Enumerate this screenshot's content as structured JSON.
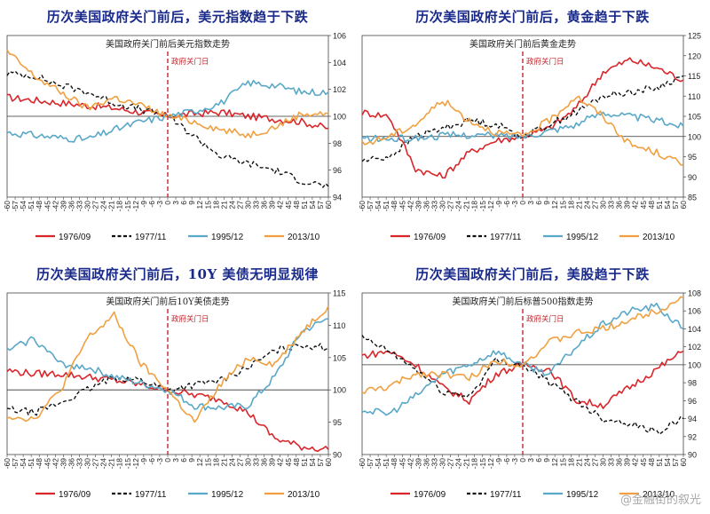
{
  "legend_labels": [
    "1976/09",
    "1977/11",
    "1995/12",
    "2013/10"
  ],
  "colors": {
    "1976/09": "#d9262b",
    "1977/11": "#111111",
    "1995/12": "#59a8c8",
    "2013/10": "#f0a040",
    "marker": "#c0272d",
    "title": "#1a2a8a"
  },
  "marker_label": "政府关门日",
  "watermark": "@金融街的叙光",
  "x_ticks": [
    "-60",
    "-57",
    "-54",
    "-51",
    "-48",
    "-45",
    "-42",
    "-39",
    "-36",
    "-33",
    "-30",
    "-27",
    "-24",
    "-21",
    "-18",
    "-15",
    "-12",
    "-9",
    "-6",
    "-3",
    "0",
    "3",
    "6",
    "9",
    "12",
    "15",
    "18",
    "21",
    "24",
    "27",
    "30",
    "33",
    "36",
    "39",
    "42",
    "45",
    "48",
    "51",
    "54",
    "57",
    "60"
  ],
  "panels": [
    {
      "title": "历次美国政府关门前后，美元指数趋于下跌",
      "subtitle": "美国政府关门前后美元指数走势"
    },
    {
      "title": "历次美国政府关门前后，黄金趋于下跌",
      "subtitle": "美国政府关门前后黄金走势"
    },
    {
      "title": "历次美国政府关门前后，10Y 美债无明显规律",
      "subtitle": "美国政府关门前后10Y美债走势"
    },
    {
      "title": "历次美国政府关门前后，美股趋于下跌",
      "subtitle": "美国政府关门前后标普500指数走势"
    }
  ],
  "chart_data": [
    {
      "type": "line",
      "title": "美国政府关门前后美元指数走势",
      "x": [
        -60,
        -50,
        -40,
        -30,
        -20,
        -10,
        0,
        10,
        20,
        30,
        40,
        50,
        60
      ],
      "ylim": [
        94,
        106
      ],
      "yticks": [
        94,
        96,
        98,
        100,
        102,
        104,
        106
      ],
      "baseline": 100,
      "series": [
        {
          "name": "1976/09",
          "values": [
            101.4,
            101.2,
            101.0,
            100.8,
            100.6,
            100.3,
            100.0,
            100.2,
            100.3,
            100.0,
            99.8,
            99.6,
            99.1
          ]
        },
        {
          "name": "1977/11",
          "values": [
            103.2,
            103.0,
            102.3,
            101.8,
            101.0,
            100.5,
            100.0,
            98.5,
            97.0,
            96.5,
            96.0,
            95.2,
            94.8
          ]
        },
        {
          "name": "1995/12",
          "values": [
            98.8,
            98.6,
            98.4,
            98.3,
            99.0,
            99.6,
            100.0,
            100.4,
            101.0,
            102.5,
            102.3,
            101.8,
            101.8
          ]
        },
        {
          "name": "2013/10",
          "values": [
            104.8,
            103.0,
            101.8,
            100.6,
            101.4,
            100.8,
            100.0,
            99.6,
            99.0,
            98.6,
            99.2,
            100.2,
            100.2
          ]
        }
      ]
    },
    {
      "type": "line",
      "title": "美国政府关门前后黄金走势",
      "x": [
        -60,
        -50,
        -40,
        -30,
        -20,
        -10,
        0,
        10,
        20,
        30,
        40,
        50,
        60
      ],
      "ylim": [
        85,
        125
      ],
      "yticks": [
        85,
        90,
        95,
        100,
        105,
        110,
        115,
        120,
        125
      ],
      "baseline": 100,
      "series": [
        {
          "name": "1976/09",
          "values": [
            106,
            105,
            92,
            90,
            96,
            99,
            100,
            102,
            107,
            116,
            119,
            117,
            114
          ]
        },
        {
          "name": "1977/11",
          "values": [
            94,
            95,
            100,
            102,
            104,
            103,
            100,
            103,
            106,
            110,
            111,
            112,
            115
          ]
        },
        {
          "name": "1995/12",
          "values": [
            99.5,
            99.3,
            99.6,
            100.2,
            100.4,
            100.2,
            100.0,
            101.5,
            103,
            106,
            105,
            104,
            102.5
          ]
        },
        {
          "name": "2013/10",
          "values": [
            98,
            100,
            103,
            109,
            104,
            101,
            100,
            104,
            110,
            105,
            98,
            96,
            93
          ]
        }
      ]
    },
    {
      "type": "line",
      "title": "美国政府关门前后10Y美债走势",
      "x": [
        -60,
        -50,
        -40,
        -30,
        -20,
        -10,
        0,
        10,
        20,
        30,
        40,
        50,
        60
      ],
      "ylim": [
        90,
        115
      ],
      "yticks": [
        90,
        95,
        100,
        105,
        110,
        115
      ],
      "baseline": 100,
      "series": [
        {
          "name": "1976/09",
          "values": [
            103,
            102.5,
            102.5,
            102.0,
            101.5,
            100.8,
            100.0,
            99.2,
            98.5,
            96.5,
            92.5,
            91.2,
            90.8
          ]
        },
        {
          "name": "1977/11",
          "values": [
            97,
            96.5,
            98,
            100,
            102,
            101.5,
            100,
            100.8,
            101.5,
            103.5,
            106,
            107,
            106.5
          ]
        },
        {
          "name": "1995/12",
          "values": [
            106,
            108,
            104,
            103.5,
            102,
            101,
            100,
            97.5,
            97.2,
            97.5,
            102,
            109,
            111
          ]
        },
        {
          "name": "2013/10",
          "values": [
            96,
            95.5,
            100,
            108,
            111.5,
            104,
            100,
            95,
            101,
            105,
            104,
            109,
            113
          ]
        }
      ]
    },
    {
      "type": "line",
      "title": "美国政府关门前后标普500指数走势",
      "x": [
        -60,
        -50,
        -40,
        -30,
        -20,
        -10,
        0,
        10,
        20,
        30,
        40,
        50,
        60
      ],
      "ylim": [
        90,
        108
      ],
      "yticks": [
        90,
        92,
        94,
        96,
        98,
        100,
        102,
        104,
        106,
        108
      ],
      "baseline": 100,
      "series": [
        {
          "name": "1976/09",
          "values": [
            101,
            101.5,
            100,
            97.5,
            96,
            99,
            100,
            99.5,
            96,
            95.5,
            97.5,
            99.5,
            101.5
          ]
        },
        {
          "name": "1977/11",
          "values": [
            103,
            101.5,
            99.5,
            97,
            96.5,
            100.5,
            100,
            98,
            96,
            94,
            93.5,
            92.5,
            94
          ]
        },
        {
          "name": "1995/12",
          "values": [
            95,
            94.5,
            96.5,
            99,
            100,
            101.5,
            100,
            99,
            102,
            104.5,
            106,
            106.5,
            104
          ]
        },
        {
          "name": "2013/10",
          "values": [
            97,
            97.5,
            99,
            99,
            98.5,
            100.5,
            100,
            102.5,
            103.5,
            104,
            105,
            106,
            107.5
          ]
        }
      ]
    }
  ]
}
